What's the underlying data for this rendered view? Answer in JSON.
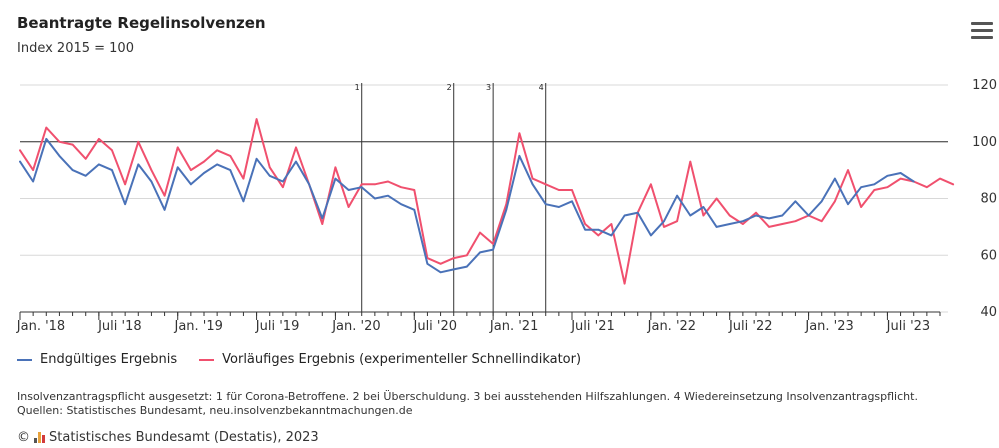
{
  "chart_data": {
    "type": "line",
    "title": "Beantragte Regelinsolvenzen",
    "subtitle": "Index 2015 = 100",
    "xlabel": "",
    "ylabel": "",
    "ylim": [
      40,
      120
    ],
    "yticks": [
      40,
      60,
      80,
      100,
      120
    ],
    "x_start": "2018-01",
    "x_end": "2023-11",
    "xticks": [
      {
        "month": "2018-01",
        "label": "Jan. '18"
      },
      {
        "month": "2018-07",
        "label": "Juli '18"
      },
      {
        "month": "2019-01",
        "label": "Jan. '19"
      },
      {
        "month": "2019-07",
        "label": "Juli '19"
      },
      {
        "month": "2020-01",
        "label": "Jan. '20"
      },
      {
        "month": "2020-07",
        "label": "Juli '20"
      },
      {
        "month": "2021-01",
        "label": "Jan. '21"
      },
      {
        "month": "2021-07",
        "label": "Juli '21"
      },
      {
        "month": "2022-01",
        "label": "Jan. '22"
      },
      {
        "month": "2022-07",
        "label": "Juli '22"
      },
      {
        "month": "2023-01",
        "label": "Jan. '23"
      },
      {
        "month": "2023-07",
        "label": "Juli '23"
      }
    ],
    "reference_line": {
      "y": 100
    },
    "markers": [
      {
        "month": "2020-03",
        "label": "1"
      },
      {
        "month": "2020-10",
        "label": "2"
      },
      {
        "month": "2021-01",
        "label": "3"
      },
      {
        "month": "2021-05",
        "label": "4"
      }
    ],
    "series": [
      {
        "name": "Endgültiges Ergebnis",
        "color": "#4a72b8",
        "start": "2018-01",
        "values": [
          93,
          86,
          101,
          95,
          90,
          88,
          92,
          90,
          78,
          92,
          86,
          76,
          91,
          85,
          89,
          92,
          90,
          79,
          94,
          88,
          86,
          93,
          85,
          73,
          87,
          83,
          84,
          80,
          81,
          78,
          76,
          57,
          54,
          55,
          56,
          61,
          62,
          76,
          95,
          85,
          78,
          77,
          79,
          69,
          69,
          67,
          74,
          75,
          67,
          72,
          81,
          74,
          77,
          70,
          71,
          72,
          74,
          73,
          74,
          79,
          74,
          79,
          87,
          78,
          84,
          85,
          88,
          89,
          86
        ]
      },
      {
        "name": "Vorläufiges Ergebnis (experimenteller Schnellindikator)",
        "color": "#f0506e",
        "start": "2018-01",
        "values": [
          97,
          90,
          105,
          100,
          99,
          94,
          101,
          97,
          85,
          100,
          90,
          81,
          98,
          90,
          93,
          97,
          95,
          87,
          108,
          91,
          84,
          98,
          85,
          71,
          91,
          77,
          85,
          85,
          86,
          84,
          83,
          59,
          57,
          59,
          60,
          68,
          64,
          78,
          103,
          87,
          85,
          83,
          83,
          71,
          67,
          71,
          50,
          75,
          85,
          70,
          72,
          93,
          74,
          80,
          74,
          71,
          75,
          70,
          71,
          72,
          74,
          72,
          79,
          90,
          77,
          83,
          84,
          87,
          86,
          84,
          87,
          85
        ]
      }
    ]
  },
  "note": {
    "line1": "Insolvenzantragspflicht ausgesetzt: 1 für Corona-Betroffene. 2 bei Überschuldung. 3 bei ausstehenden Hilfszahlungen. 4 Wiedereinsetzung Insolvenzantragspflicht.",
    "line2": "Quellen: Statistisches Bundesamt, neu.insolvenzbekanntmachungen.de"
  },
  "credit": {
    "copyright": "©",
    "text": "Statistisches Bundesamt (Destatis), 2023",
    "logo_colors": [
      "#555555",
      "#e8a33c",
      "#d33b3b"
    ]
  },
  "menu_icon": "hamburger-menu-icon"
}
